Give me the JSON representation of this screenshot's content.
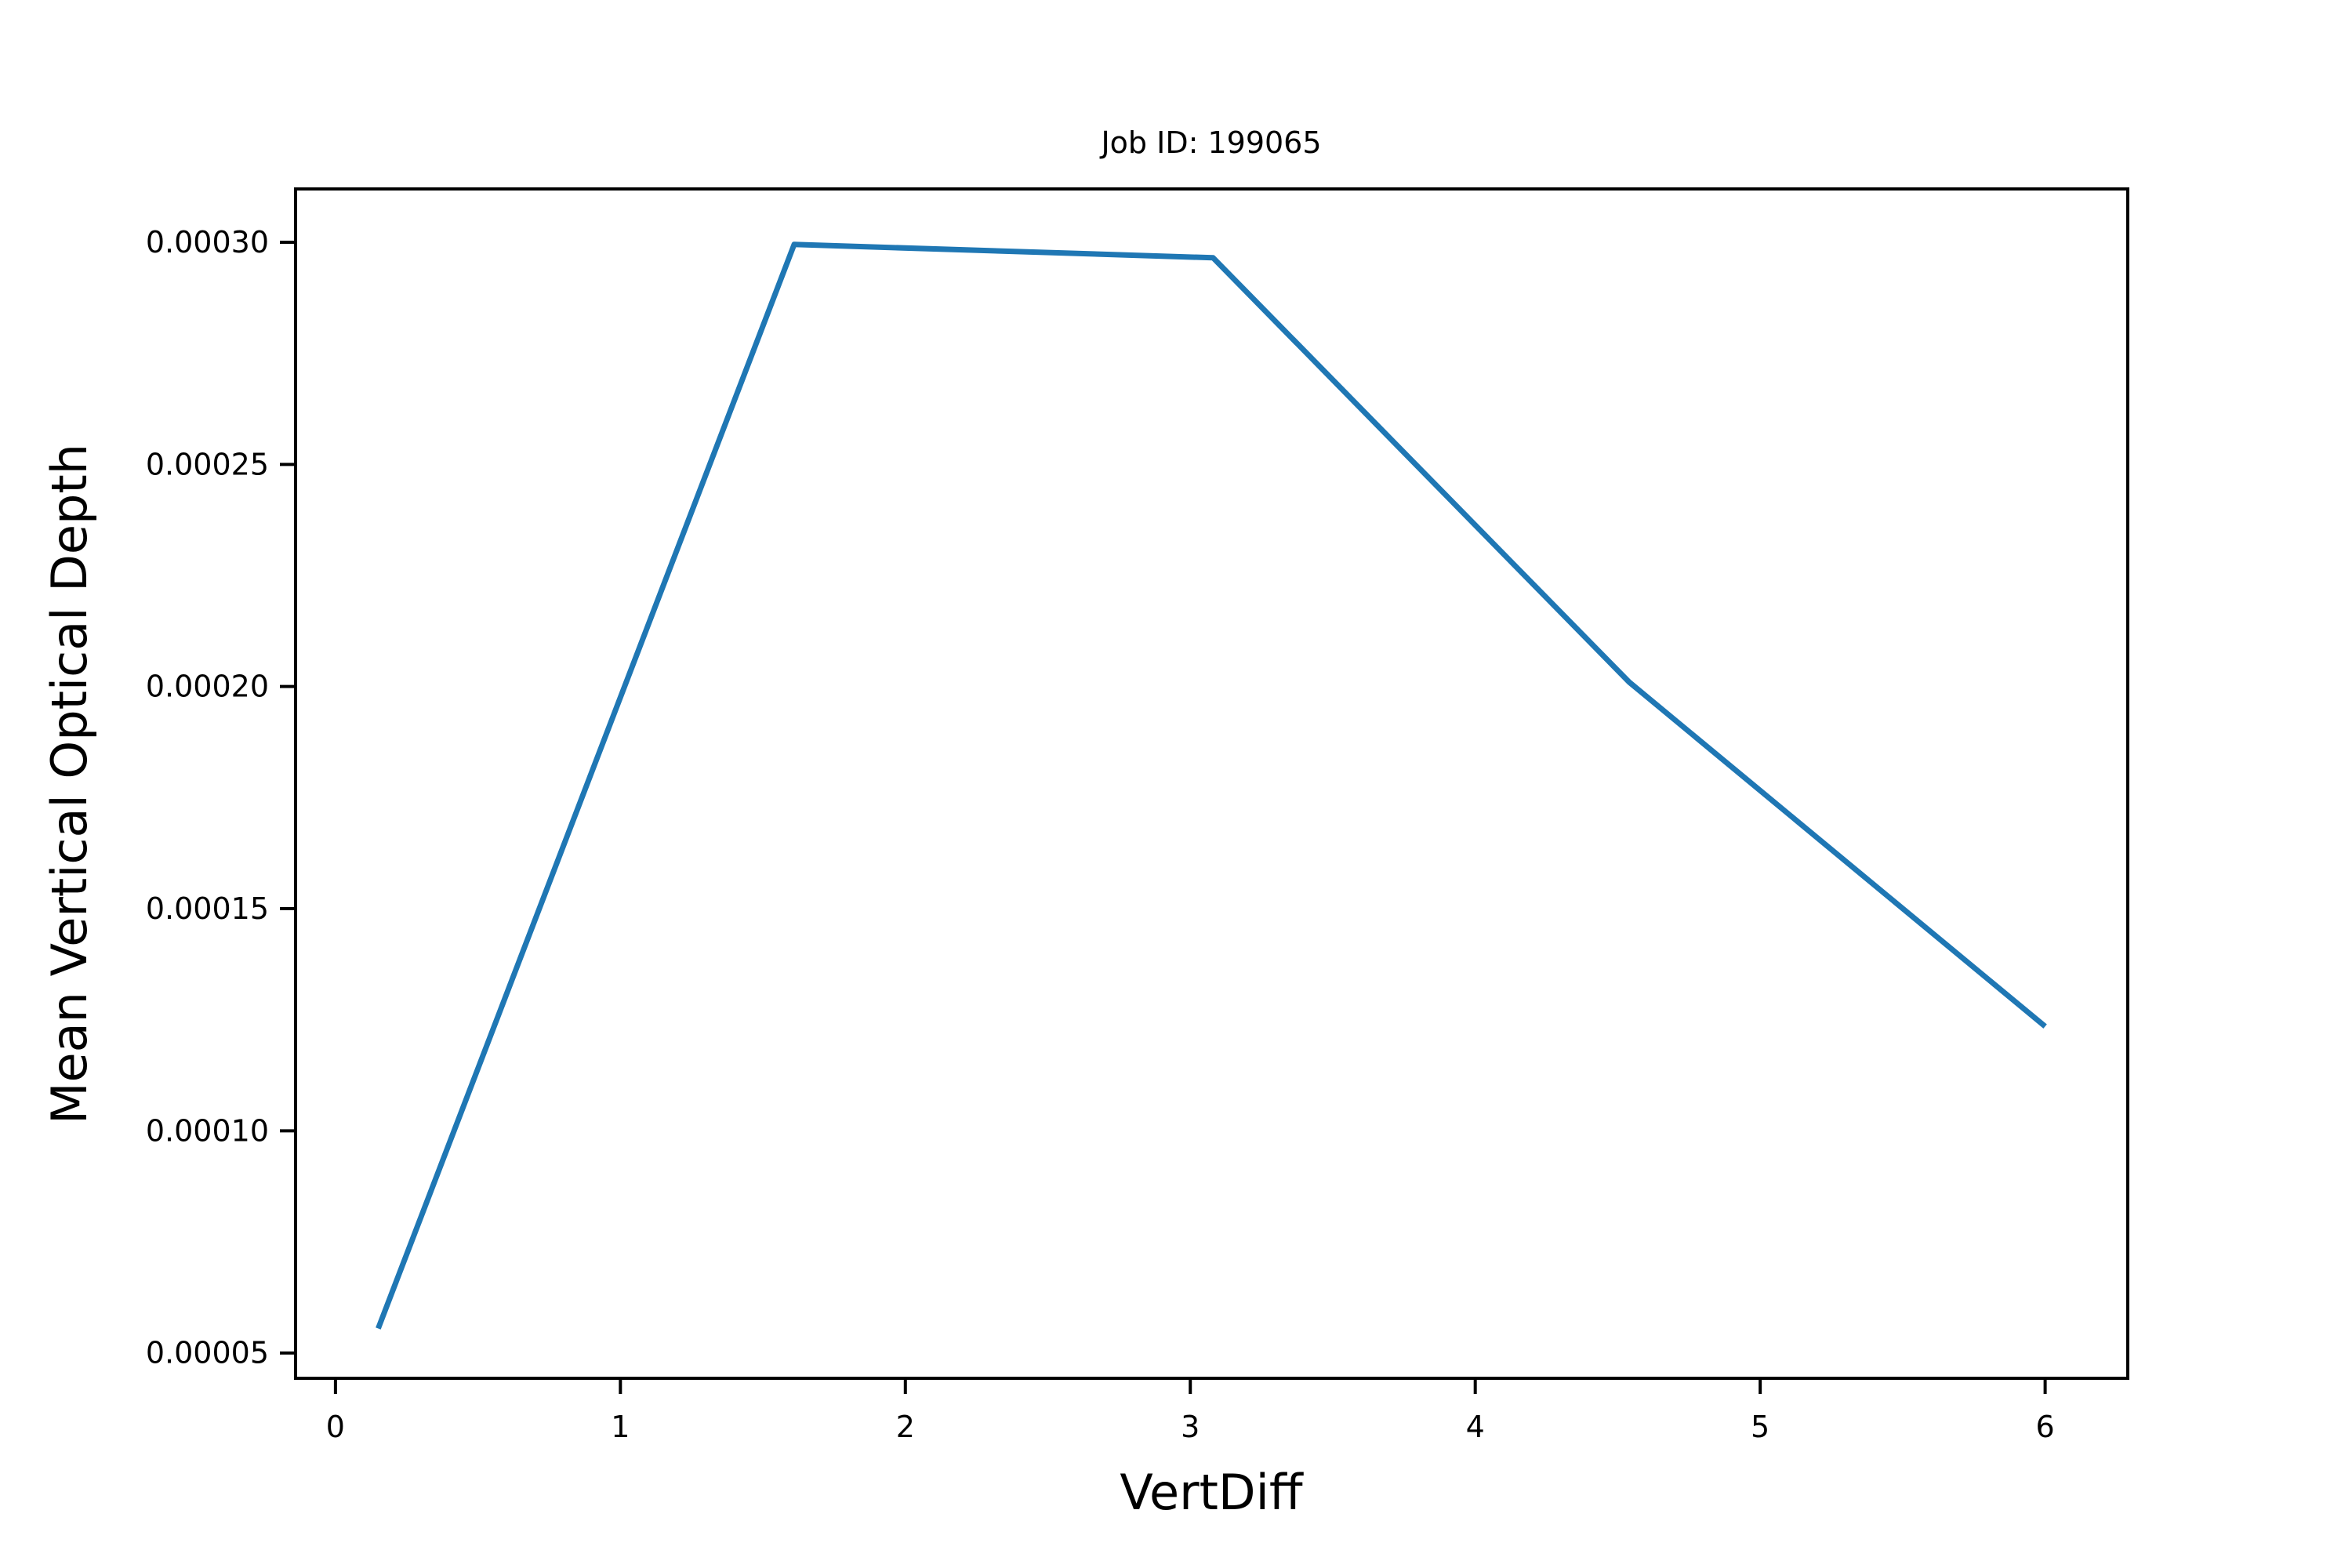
{
  "chart_data": {
    "type": "line",
    "title": "Job ID: 199065",
    "xlabel": "VertDiff",
    "ylabel": "Mean Vertical Optical Depth",
    "xlim": [
      -0.14,
      6.29
    ],
    "ylim": [
      4.43e-05,
      0.000312
    ],
    "xticks": [
      0,
      1,
      2,
      3,
      4,
      5,
      6
    ],
    "xtick_labels": [
      "0",
      "1",
      "2",
      "3",
      "4",
      "5",
      "6"
    ],
    "yticks": [
      5e-05,
      0.0001,
      0.00015,
      0.0002,
      0.00025,
      0.0003
    ],
    "ytick_labels": [
      "0.00005",
      "0.00010",
      "0.00015",
      "0.00020",
      "0.00025",
      "0.00030"
    ],
    "grid": false,
    "legend": false,
    "series": [
      {
        "color": "#1f77b4",
        "x": [
          0.15,
          1.61,
          3.08,
          4.54,
          6.0
        ],
        "y": [
          5.55e-05,
          0.0002995,
          0.0002965,
          0.000201,
          0.0001235
        ]
      }
    ]
  }
}
